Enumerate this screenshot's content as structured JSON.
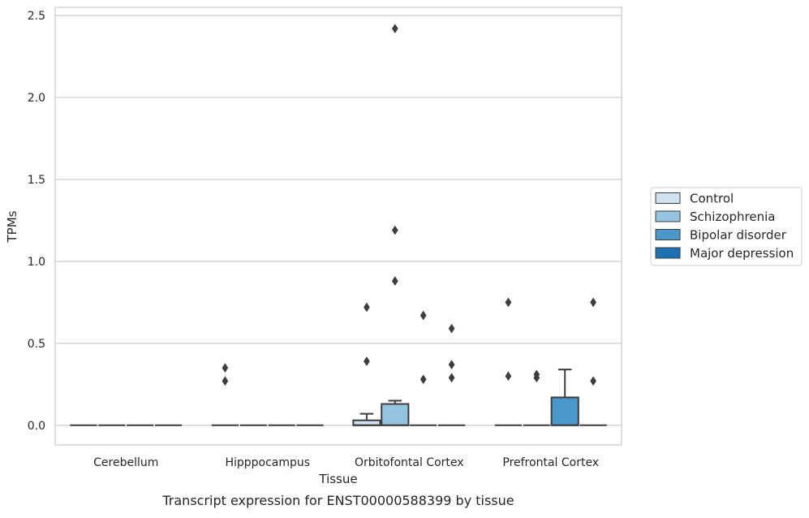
{
  "chart_data": {
    "type": "box",
    "title": "",
    "caption": "Transcript expression for ENST00000588399 by tissue",
    "xlabel": "Tissue",
    "ylabel": "TPMs",
    "ylim": [
      -0.12,
      2.55
    ],
    "yticks": [
      0.0,
      0.5,
      1.0,
      1.5,
      2.0,
      2.5
    ],
    "ytick_labels": [
      "0.0",
      "0.5",
      "1.0",
      "1.5",
      "2.0",
      "2.5"
    ],
    "categories": [
      "Cerebellum",
      "Hipppocampus",
      "Orbitofontal Cortex",
      "Prefrontal Cortex"
    ],
    "grid": true,
    "legend_position": "right",
    "series": [
      {
        "name": "Control",
        "color": "#d0e1f2",
        "boxes": [
          {
            "q1": 0,
            "median": 0,
            "q3": 0,
            "whisker_low": 0,
            "whisker_high": 0,
            "outliers": []
          },
          {
            "q1": 0,
            "median": 0,
            "q3": 0,
            "whisker_low": 0,
            "whisker_high": 0,
            "outliers": [
              0.35,
              0.27
            ]
          },
          {
            "q1": 0,
            "median": 0,
            "q3": 0.03,
            "whisker_low": 0,
            "whisker_high": 0.07,
            "outliers": [
              0.72,
              0.39
            ]
          },
          {
            "q1": 0,
            "median": 0,
            "q3": 0,
            "whisker_low": 0,
            "whisker_high": 0,
            "outliers": [
              0.75,
              0.3
            ]
          }
        ]
      },
      {
        "name": "Schizophrenia",
        "color": "#94c4df",
        "boxes": [
          {
            "q1": 0,
            "median": 0,
            "q3": 0,
            "whisker_low": 0,
            "whisker_high": 0,
            "outliers": []
          },
          {
            "q1": 0,
            "median": 0,
            "q3": 0,
            "whisker_low": 0,
            "whisker_high": 0,
            "outliers": []
          },
          {
            "q1": 0,
            "median": 0,
            "q3": 0.13,
            "whisker_low": 0,
            "whisker_high": 0.15,
            "outliers": [
              2.42,
              1.19,
              0.88
            ]
          },
          {
            "q1": 0,
            "median": 0,
            "q3": 0,
            "whisker_low": 0,
            "whisker_high": 0,
            "outliers": [
              0.31,
              0.29
            ]
          }
        ]
      },
      {
        "name": "Bipolar disorder",
        "color": "#4a98c9",
        "boxes": [
          {
            "q1": 0,
            "median": 0,
            "q3": 0,
            "whisker_low": 0,
            "whisker_high": 0,
            "outliers": []
          },
          {
            "q1": 0,
            "median": 0,
            "q3": 0,
            "whisker_low": 0,
            "whisker_high": 0,
            "outliers": []
          },
          {
            "q1": 0,
            "median": 0,
            "q3": 0,
            "whisker_low": 0,
            "whisker_high": 0,
            "outliers": [
              0.67,
              0.28
            ]
          },
          {
            "q1": 0,
            "median": 0,
            "q3": 0.17,
            "whisker_low": 0,
            "whisker_high": 0.34,
            "outliers": []
          }
        ]
      },
      {
        "name": "Major depression",
        "color": "#2070b4",
        "boxes": [
          {
            "q1": 0,
            "median": 0,
            "q3": 0,
            "whisker_low": 0,
            "whisker_high": 0,
            "outliers": []
          },
          {
            "q1": 0,
            "median": 0,
            "q3": 0,
            "whisker_low": 0,
            "whisker_high": 0,
            "outliers": []
          },
          {
            "q1": 0,
            "median": 0,
            "q3": 0,
            "whisker_low": 0,
            "whisker_high": 0,
            "outliers": [
              0.59,
              0.37,
              0.29
            ]
          },
          {
            "q1": 0,
            "median": 0,
            "q3": 0,
            "whisker_low": 0,
            "whisker_high": 0,
            "outliers": [
              0.75,
              0.27
            ]
          }
        ]
      }
    ]
  }
}
